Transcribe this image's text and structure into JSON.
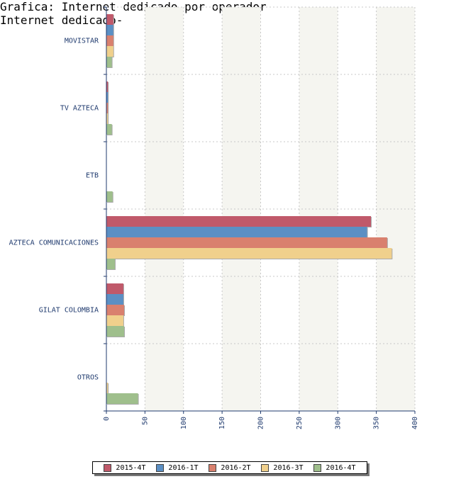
{
  "chart_data": {
    "type": "bar",
    "orientation": "horizontal",
    "categories": [
      "MOVISTAR",
      "TV AZTECA",
      "ETB",
      "AZTECA COMUNICACIONES",
      "GILAT COLOMBIA",
      "OTROS"
    ],
    "series": [
      {
        "name": "2015-4T",
        "color": "#c0596a",
        "values": [
          9,
          2,
          0,
          343,
          22,
          0
        ]
      },
      {
        "name": "2016-1T",
        "color": "#5b8fc4",
        "values": [
          9,
          2,
          0,
          338,
          22,
          0
        ]
      },
      {
        "name": "2016-2T",
        "color": "#d9806e",
        "values": [
          9,
          2,
          0,
          364,
          23,
          0
        ]
      },
      {
        "name": "2016-3T",
        "color": "#f0d08c",
        "values": [
          9,
          2,
          0,
          370,
          22,
          2
        ]
      },
      {
        "name": "2016-4T",
        "color": "#9fbf8c",
        "values": [
          7,
          7,
          8,
          11,
          23,
          41
        ]
      }
    ],
    "xlim": [
      0,
      400
    ],
    "x_ticks": [
      "0",
      "50",
      "100",
      "150",
      "200",
      "250",
      "300",
      "350",
      "400"
    ],
    "grid": true,
    "legend_position": "bottom"
  },
  "caption": {
    "line1": "Grafica: Internet dedicado por operador",
    "line2": "Internet dedicado-"
  }
}
